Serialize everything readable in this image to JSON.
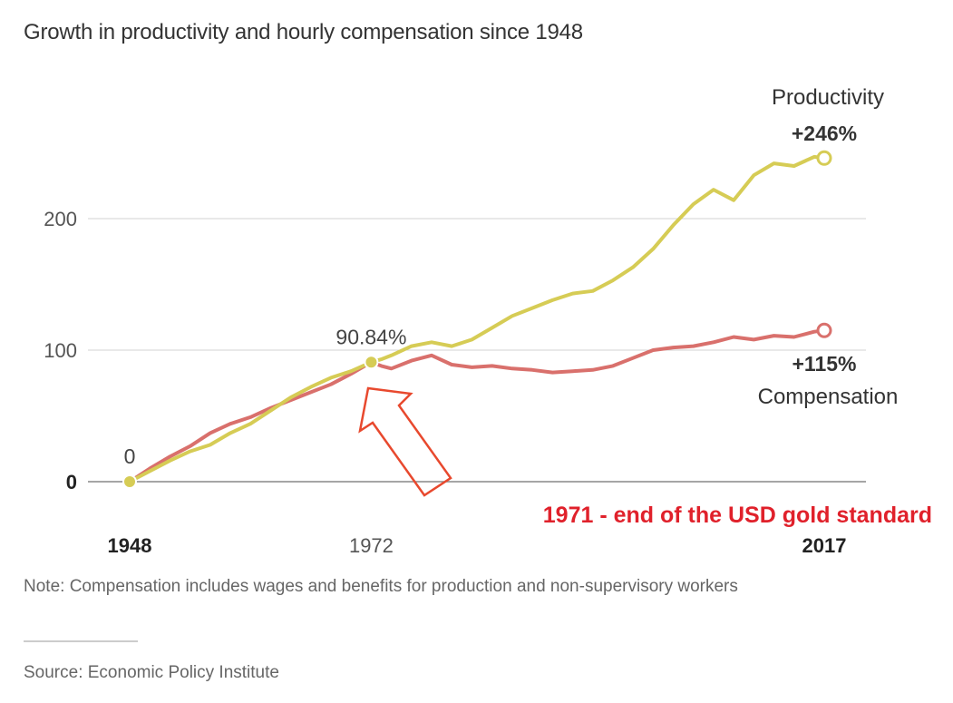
{
  "title": "Growth in productivity and hourly compensation since 1948",
  "note": "Note: Compensation includes wages and benefits for production and non-supervisory workers",
  "source": "Source: Economic Policy Institute",
  "colors": {
    "productivity": "#d6cc55",
    "compensation": "#d9706c",
    "annotation": "#e0212b",
    "arrow": "#e8492e",
    "grid": "#d3d3d3",
    "axis": "#888888"
  },
  "chart_data": {
    "type": "line",
    "title": "Growth in productivity and hourly compensation since 1948",
    "xlabel": "",
    "ylabel": "",
    "xlim": [
      1948,
      2017
    ],
    "ylim": [
      0,
      246
    ],
    "grid": true,
    "y_ticks": [
      {
        "value": 0,
        "label": "0",
        "bold": true
      },
      {
        "value": 100,
        "label": "100",
        "bold": false
      },
      {
        "value": 200,
        "label": "200",
        "bold": false
      }
    ],
    "x_ticks": [
      {
        "value": 1948,
        "label": "1948",
        "bold": true
      },
      {
        "value": 1972,
        "label": "1972",
        "bold": false
      },
      {
        "value": 2017,
        "label": "2017",
        "bold": true
      }
    ],
    "x": [
      1948,
      1950,
      1952,
      1954,
      1956,
      1958,
      1960,
      1962,
      1964,
      1966,
      1968,
      1970,
      1972,
      1973,
      1974,
      1976,
      1978,
      1980,
      1982,
      1984,
      1986,
      1988,
      1990,
      1992,
      1994,
      1996,
      1998,
      2000,
      2002,
      2004,
      2006,
      2008,
      2010,
      2012,
      2014,
      2016,
      2017
    ],
    "series": [
      {
        "name": "Productivity",
        "label": "Productivity",
        "end_label": "+246%",
        "values": [
          0,
          8,
          16,
          23,
          28,
          37,
          44,
          54,
          64,
          72,
          79,
          84,
          90.84,
          93,
          96,
          103,
          106,
          103,
          108,
          117,
          126,
          132,
          138,
          143,
          145,
          153,
          163,
          177,
          195,
          211,
          222,
          214,
          233,
          242,
          240,
          247,
          246
        ]
      },
      {
        "name": "Compensation",
        "label": "Compensation",
        "end_label": "+115%",
        "values": [
          0,
          10,
          19,
          27,
          37,
          44,
          49,
          56,
          62,
          68,
          74,
          82,
          90.84,
          88,
          86,
          92,
          96,
          89,
          87,
          88,
          86,
          85,
          83,
          84,
          85,
          88,
          94,
          100,
          102,
          103,
          106,
          110,
          108,
          111,
          110,
          114,
          115
        ]
      }
    ],
    "point_annotations": [
      {
        "x": 1948,
        "y": 0,
        "label": "0"
      },
      {
        "x": 1972,
        "y": 90.84,
        "label": "90.84%"
      }
    ],
    "callout": {
      "text": "1971 - end of the USD gold standard",
      "points_to_year": 1972
    },
    "legend": "inline-end-labels"
  }
}
